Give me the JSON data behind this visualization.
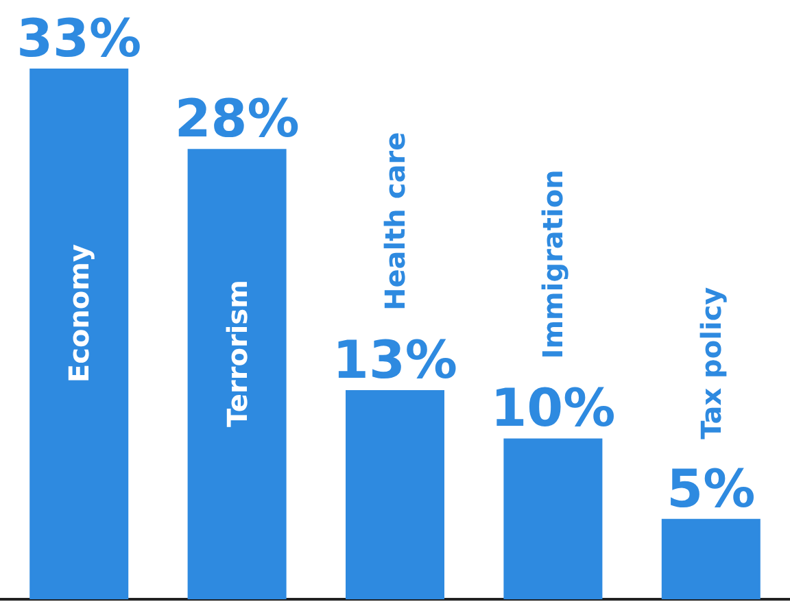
{
  "chart_data": {
    "type": "bar",
    "categories": [
      "Economy",
      "Terrorism",
      "Health care",
      "Immigration",
      "Tax policy"
    ],
    "values": [
      33,
      28,
      13,
      10,
      5
    ],
    "value_labels": [
      "33%",
      "28%",
      "13%",
      "10%",
      "5%"
    ],
    "color": "#2e8ae0"
  }
}
